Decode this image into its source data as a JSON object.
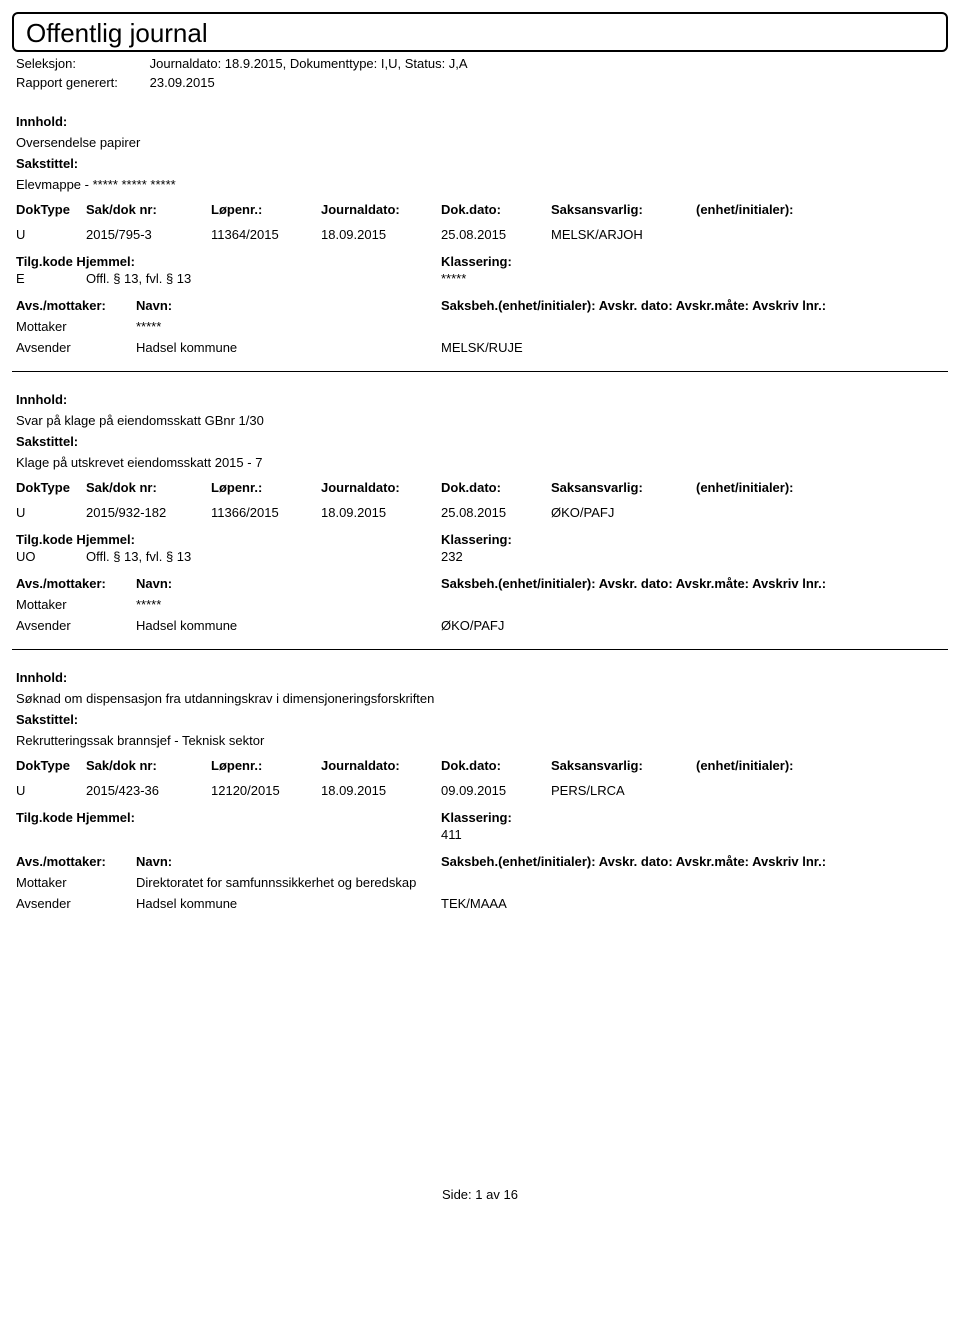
{
  "header": {
    "title": "Offentlig journal",
    "seleksjon_label": "Seleksjon:",
    "seleksjon_value": "Journaldato: 18.9.2015, Dokumenttype: I,U, Status: J,A",
    "rapport_label": "Rapport generert:",
    "rapport_value": "23.09.2015"
  },
  "labels": {
    "innhold": "Innhold:",
    "sakstittel": "Sakstittel:",
    "doktype": "DokType",
    "sakdok": "Sak/dok nr:",
    "lopenr": "Løpenr.:",
    "journaldato": "Journaldato:",
    "dokdato": "Dok.dato:",
    "saksansvarlig": "Saksansvarlig:",
    "enhet": "(enhet/initialer):",
    "tilgkode": "Tilg.kode",
    "hjemmel": "Hjemmel:",
    "klassering": "Klassering:",
    "avsmottaker": "Avs./mottaker:",
    "navn": "Navn:",
    "saksbeh": "Saksbeh.(enhet/initialer): Avskr. dato: Avskr.måte: Avskriv lnr.:",
    "mottaker": "Mottaker",
    "avsender": "Avsender"
  },
  "entries": [
    {
      "innhold": "Oversendelse papirer",
      "sakstittel": "Elevmappe - ***** ***** *****",
      "doktype": "U",
      "sakdok": "2015/795-3",
      "lopenr": "11364/2015",
      "journaldato": "18.09.2015",
      "dokdato": "25.08.2015",
      "saksansvarlig": "MELSK/ARJOH",
      "tilgkode": "E",
      "hjemmel": "Offl. § 13, fvl. § 13",
      "klassering": "*****",
      "mottaker_navn": "*****",
      "avsender_navn": "Hadsel kommune",
      "avsender_kode": "MELSK/RUJE"
    },
    {
      "innhold": "Svar på klage på eiendomsskatt GBnr 1/30",
      "sakstittel": "Klage på utskrevet eiendomsskatt 2015 - 7",
      "doktype": "U",
      "sakdok": "2015/932-182",
      "lopenr": "11366/2015",
      "journaldato": "18.09.2015",
      "dokdato": "25.08.2015",
      "saksansvarlig": "ØKO/PAFJ",
      "tilgkode": "UO",
      "hjemmel": "Offl. § 13, fvl. § 13",
      "klassering": "232",
      "mottaker_navn": "*****",
      "avsender_navn": "Hadsel kommune",
      "avsender_kode": "ØKO/PAFJ"
    },
    {
      "innhold": "Søknad om dispensasjon fra utdanningskrav i dimensjoneringsforskriften",
      "sakstittel": "Rekrutteringssak brannsjef - Teknisk sektor",
      "doktype": "U",
      "sakdok": "2015/423-36",
      "lopenr": "12120/2015",
      "journaldato": "18.09.2015",
      "dokdato": "09.09.2015",
      "saksansvarlig": "PERS/LRCA",
      "tilgkode": "",
      "hjemmel": "",
      "klassering": "411",
      "mottaker_navn": "Direktoratet for samfunnssikkerhet og beredskap",
      "avsender_navn": "Hadsel kommune",
      "avsender_kode": "TEK/MAAA"
    }
  ],
  "footer": {
    "side_label": "Side:",
    "page": "1",
    "av": "av",
    "total": "16"
  }
}
